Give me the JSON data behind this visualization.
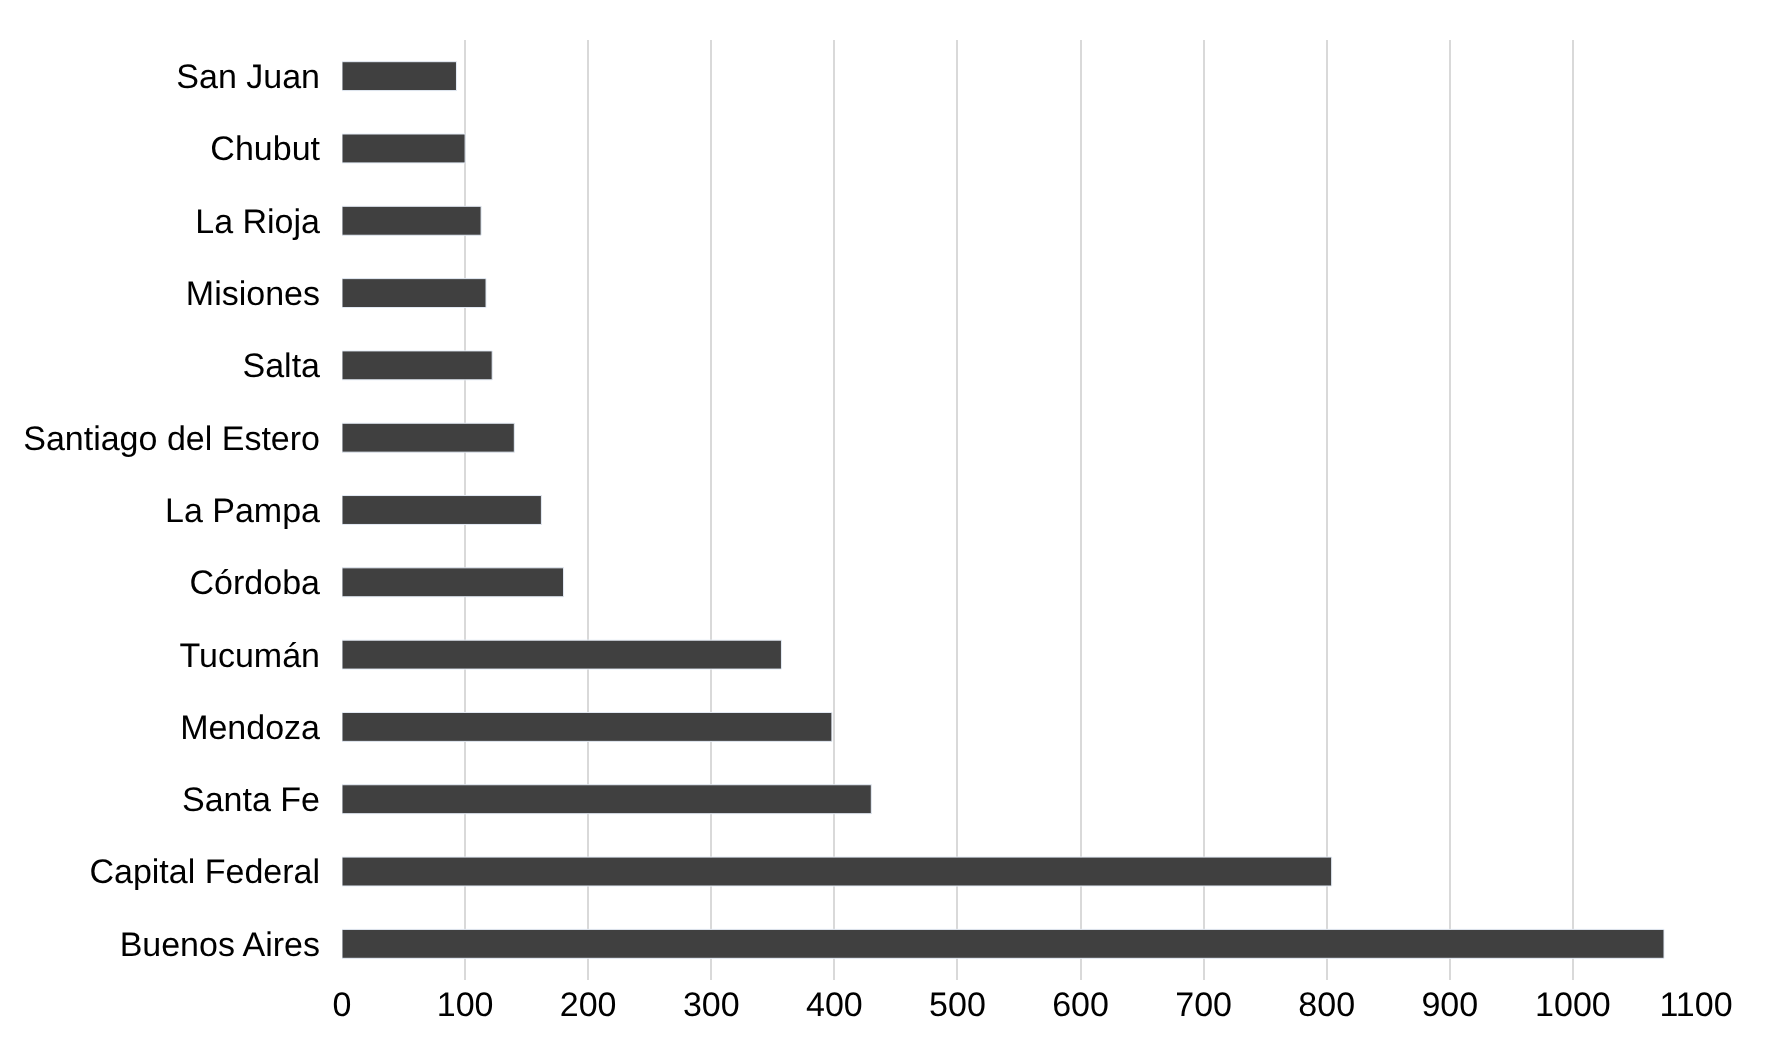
{
  "chart_data": {
    "type": "bar",
    "orientation": "horizontal",
    "categories": [
      "San Juan",
      "Chubut",
      "La Rioja",
      "Misiones",
      "Salta",
      "Santiago del Estero",
      "La Pampa",
      "Córdoba",
      "Tucumán",
      "Mendoza",
      "Santa Fe",
      "Capital Federal",
      "Buenos Aires"
    ],
    "values": [
      93,
      100,
      113,
      117,
      122,
      140,
      162,
      180,
      357,
      398,
      430,
      804,
      1074
    ],
    "color": "#404040",
    "xlim": [
      0,
      1100
    ],
    "xticks": [
      0,
      100,
      200,
      300,
      400,
      500,
      600,
      700,
      800,
      900,
      1000,
      1100
    ],
    "grid": "x"
  }
}
